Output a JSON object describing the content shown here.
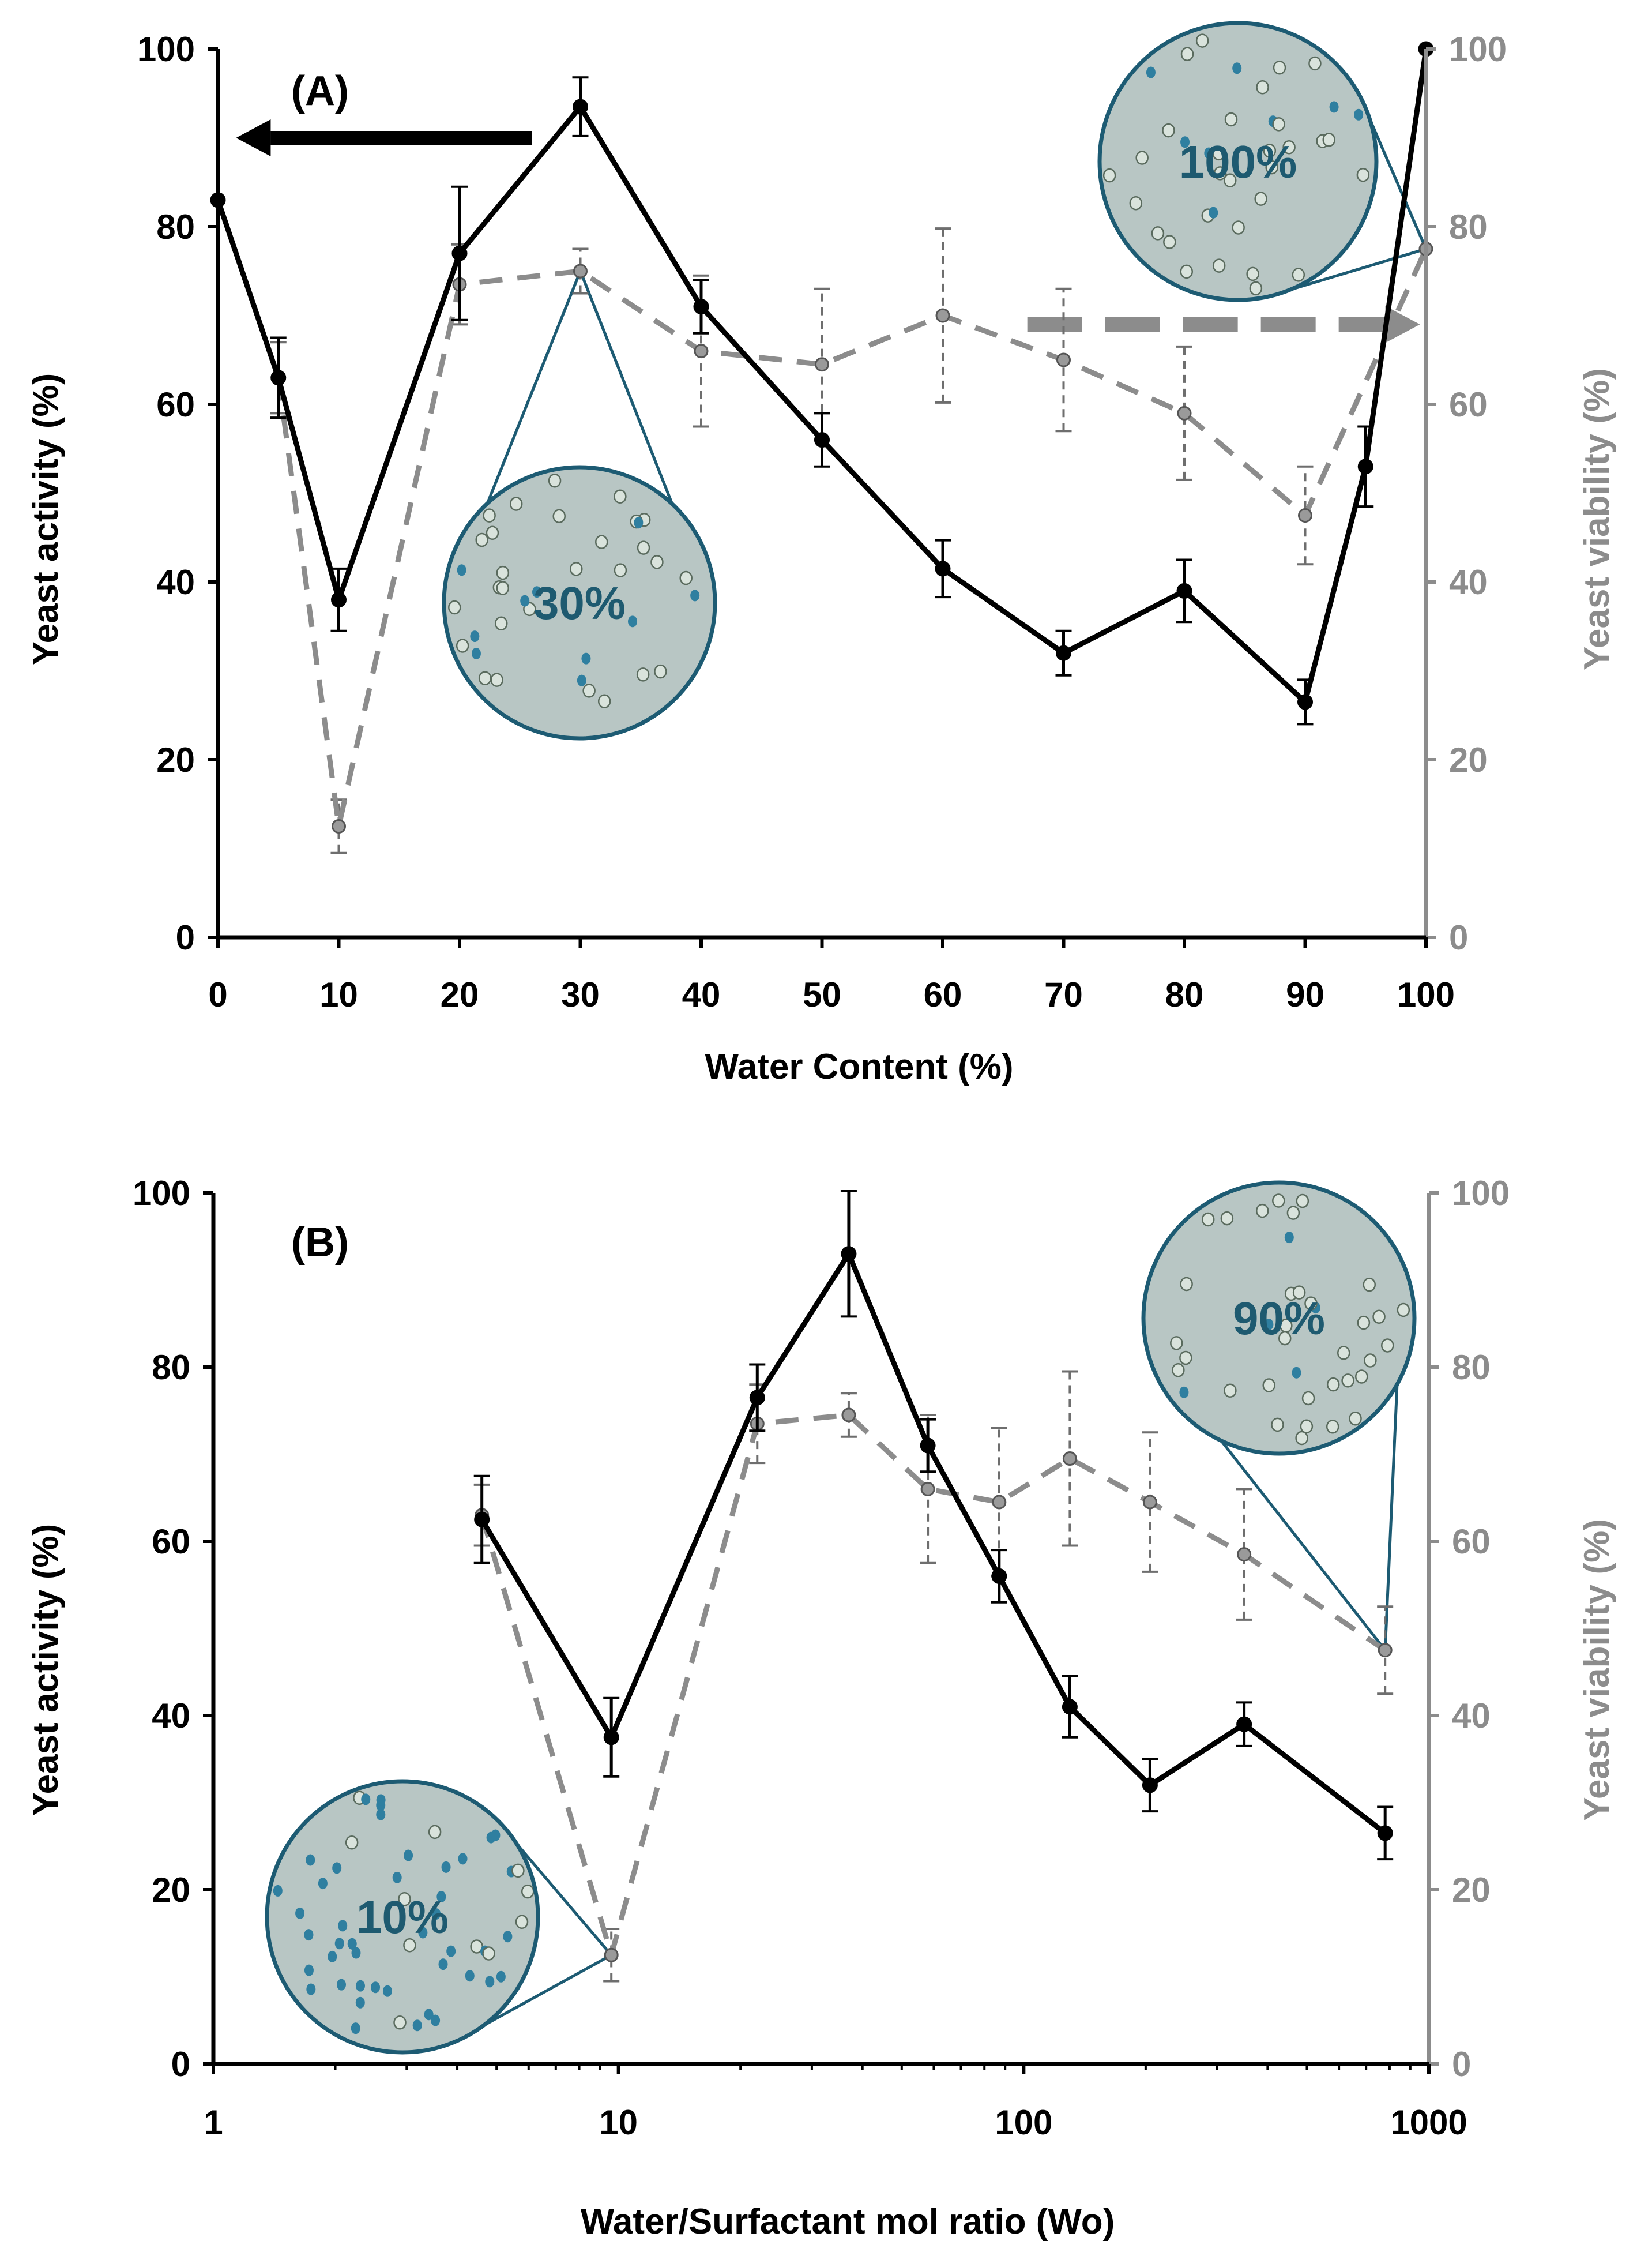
{
  "figure": {
    "colors": {
      "activity": "#000000",
      "viability": "#8c8c8c",
      "inset_border": "#1d5b73",
      "inset_fill": "#b8c6c4",
      "cell_dark": "#2f7fa0",
      "cell_light": "#d9e3dc"
    }
  },
  "chart_data": [
    {
      "type": "line",
      "panel_label": "(A)",
      "xlabel": "Water Content (%)",
      "ylabel_left": "Yeast activity (%)",
      "ylabel_right": "Yeast viability (%)",
      "x_scale": "linear",
      "xlim": [
        0,
        100
      ],
      "ylim": [
        0,
        100
      ],
      "y2lim": [
        0,
        100
      ],
      "x_ticks": [
        0,
        10,
        20,
        30,
        40,
        50,
        60,
        70,
        80,
        90,
        100
      ],
      "x_tick_labels": [
        "0",
        "10",
        "20",
        "30",
        "40",
        "50",
        "60",
        "70",
        "80",
        "90",
        "100"
      ],
      "y_ticks": [
        0,
        20,
        40,
        60,
        80,
        100
      ],
      "y_tick_labels": [
        "0",
        "20",
        "40",
        "60",
        "80",
        "100"
      ],
      "series": [
        {
          "name": "Yeast activity",
          "axis": "left",
          "style": "solid",
          "x": [
            0,
            5,
            10,
            20,
            30,
            40,
            50,
            60,
            70,
            80,
            90,
            95,
            100
          ],
          "values": [
            83,
            63,
            38,
            77,
            93.5,
            71,
            56,
            41.5,
            32,
            39,
            26.5,
            53,
            100
          ],
          "err": [
            0,
            4.5,
            3.5,
            7.5,
            3.3,
            3,
            3,
            3.2,
            2.5,
            3.5,
            2.5,
            4.5,
            0
          ]
        },
        {
          "name": "Yeast viability",
          "axis": "right",
          "style": "dashed",
          "x": [
            5,
            10,
            20,
            30,
            40,
            50,
            60,
            70,
            80,
            90,
            100
          ],
          "values": [
            63,
            12.5,
            73.5,
            75,
            66,
            64.5,
            70,
            65,
            59,
            47.5,
            77.5
          ],
          "err": [
            4,
            3,
            4.5,
            2.5,
            8.5,
            8.5,
            9.8,
            8,
            7.5,
            5.5,
            0
          ]
        }
      ],
      "arrows": [
        {
          "axis": "left",
          "direction": "left",
          "from_x": 26,
          "to_x": 1.5,
          "y": 90
        },
        {
          "axis": "right",
          "direction": "right",
          "from_x": 67,
          "to_x": 99.5,
          "y": 69
        }
      ],
      "insets": [
        {
          "label": "100%",
          "anchor_x": 100,
          "anchor_y": 77.5
        },
        {
          "label": "30%",
          "anchor_x": 30,
          "anchor_y": 75
        }
      ]
    },
    {
      "type": "line",
      "panel_label": "(B)",
      "xlabel": "Water/Surfactant mol ratio (Wo)",
      "ylabel_left": "Yeast activity (%)",
      "ylabel_right": "Yeast viability (%)",
      "x_scale": "log",
      "xlim": [
        1,
        1000
      ],
      "ylim": [
        0,
        100
      ],
      "y2lim": [
        0,
        100
      ],
      "x_ticks": [
        1,
        10,
        100,
        1000
      ],
      "x_tick_labels": [
        "1",
        "10",
        "100",
        "1000"
      ],
      "y_ticks": [
        0,
        20,
        40,
        60,
        80,
        100
      ],
      "y_tick_labels": [
        "0",
        "20",
        "40",
        "60",
        "80",
        "100"
      ],
      "series": [
        {
          "name": "Yeast activity",
          "axis": "left",
          "style": "solid",
          "x": [
            4.6,
            9.6,
            22,
            37,
            58,
            87,
            130,
            205,
            350,
            780
          ],
          "values": [
            62.5,
            37.5,
            76.5,
            93,
            71,
            56,
            41,
            32,
            39,
            26.5
          ],
          "err": [
            5,
            4.5,
            3.8,
            7.2,
            3,
            3,
            3.5,
            3,
            2.5,
            3
          ]
        },
        {
          "name": "Yeast viability",
          "axis": "right",
          "style": "dashed",
          "x": [
            4.6,
            9.6,
            22,
            37,
            58,
            87,
            130,
            205,
            350,
            780
          ],
          "values": [
            63,
            12.5,
            73.5,
            74.5,
            66,
            64.5,
            69.5,
            64.5,
            58.5,
            47.5
          ],
          "err": [
            3.5,
            3,
            4.5,
            2.5,
            8.5,
            8.5,
            10,
            8,
            7.5,
            5
          ]
        }
      ],
      "arrows": [],
      "insets": [
        {
          "label": "90%",
          "anchor_x": 780,
          "anchor_y": 47.5
        },
        {
          "label": "10%",
          "anchor_x": 9.6,
          "anchor_y": 12.5
        }
      ]
    }
  ]
}
